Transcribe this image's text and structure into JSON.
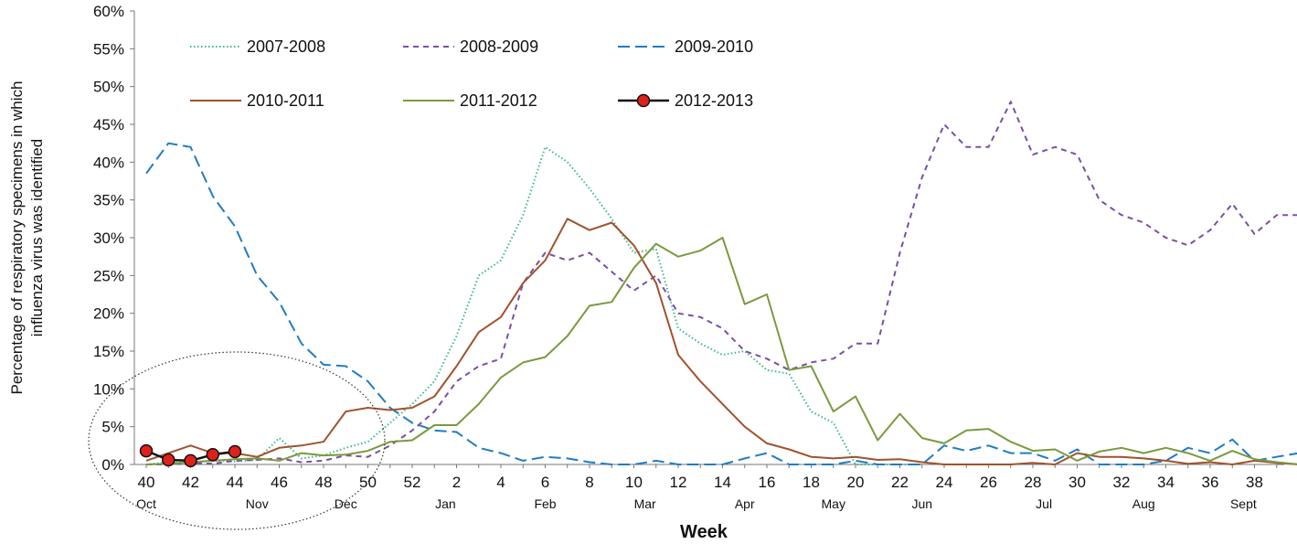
{
  "chart_data": {
    "type": "line",
    "title": "",
    "xlabel": "Week",
    "ylabel_line1": "Percentage of respiratory specimens in which",
    "ylabel_line2": "influenza virus was identified",
    "ylim": [
      0,
      60
    ],
    "y_ticks": [
      "0%",
      "5%",
      "10%",
      "15%",
      "20%",
      "25%",
      "30%",
      "35%",
      "40%",
      "45%",
      "50%",
      "55%",
      "60%"
    ],
    "x_tick_labels": [
      "40",
      "42",
      "44",
      "46",
      "48",
      "50",
      "52",
      "2",
      "4",
      "6",
      "8",
      "10",
      "12",
      "14",
      "16",
      "18",
      "20",
      "22",
      "24",
      "26",
      "28",
      "30",
      "32",
      "34",
      "36",
      "38"
    ],
    "month_labels": [
      {
        "label": "Oct",
        "week_index": 0
      },
      {
        "label": "Nov",
        "week_index": 5
      },
      {
        "label": "Dec",
        "week_index": 9
      },
      {
        "label": "Jan",
        "week_index": 13.5
      },
      {
        "label": "Feb",
        "week_index": 18
      },
      {
        "label": "Mar",
        "week_index": 22.5
      },
      {
        "label": "Apr",
        "week_index": 27
      },
      {
        "label": "May",
        "week_index": 31
      },
      {
        "label": "Jun",
        "week_index": 35
      },
      {
        "label": "Jul",
        "week_index": 40.5
      },
      {
        "label": "Aug",
        "week_index": 45
      },
      {
        "label": "Sept",
        "week_index": 49.5
      }
    ],
    "x_note": "x values are week positions counted from week 40 (index 0) through week 39 (index 52)",
    "grid": false,
    "legend_placement": "top-left",
    "series": [
      {
        "name": "2007-2008",
        "color": "#3cb88a",
        "style": "dotted",
        "x": [
          0,
          1,
          2,
          3,
          4,
          5,
          6,
          7,
          8,
          9,
          10,
          11,
          12,
          13,
          14,
          15,
          16,
          17,
          18,
          19,
          20,
          21,
          22,
          23,
          24,
          25,
          26,
          27,
          28,
          29,
          30,
          31,
          32,
          33,
          34,
          35
        ],
        "values": [
          0,
          0.3,
          0.2,
          0.5,
          0.4,
          0.6,
          3.5,
          0.8,
          1.2,
          2.2,
          3,
          5.5,
          8,
          11,
          17,
          25,
          27,
          33,
          42,
          40,
          36.5,
          32.5,
          28,
          28.5,
          18,
          16,
          14.5,
          15,
          12.5,
          12,
          7,
          5.5,
          0,
          0,
          0,
          0
        ]
      },
      {
        "name": "2008-2009",
        "color": "#7b4fa3",
        "style": "dashed",
        "x": [
          0,
          1,
          2,
          3,
          4,
          5,
          6,
          7,
          8,
          9,
          10,
          11,
          12,
          13,
          14,
          15,
          16,
          17,
          18,
          19,
          20,
          21,
          22,
          23,
          24,
          25,
          26,
          27,
          28,
          29,
          30,
          31,
          32,
          33,
          34,
          35,
          36,
          37,
          38,
          39,
          40,
          41,
          42,
          43,
          44,
          45,
          46,
          47,
          48,
          49,
          50,
          51,
          52
        ],
        "values": [
          0,
          0,
          0.2,
          0.1,
          0.5,
          0.6,
          0.8,
          0.3,
          0.5,
          1.2,
          1,
          2.5,
          4.5,
          7,
          11,
          13,
          14,
          24,
          28,
          27,
          28,
          25.5,
          23,
          25,
          20,
          19.5,
          18,
          15,
          14,
          12.5,
          13.5,
          14,
          16,
          16,
          28,
          38,
          45,
          42,
          42,
          48,
          41,
          42,
          41,
          35,
          33,
          32,
          30,
          29,
          31,
          34.5,
          30.5,
          33,
          33
        ]
      },
      {
        "name": "2009-2010",
        "color": "#1f7dc2",
        "style": "longdash",
        "x": [
          0,
          1,
          2,
          3,
          4,
          5,
          6,
          7,
          8,
          9,
          10,
          11,
          12,
          13,
          14,
          15,
          16,
          17,
          18,
          19,
          20,
          21,
          22,
          23,
          24,
          25,
          26,
          27,
          28,
          29,
          30,
          31,
          32,
          33,
          34,
          35,
          36,
          37,
          38,
          39,
          40,
          41,
          42,
          43,
          44,
          45,
          46,
          47,
          48,
          49,
          50,
          51,
          52
        ],
        "values": [
          38.5,
          42.5,
          42,
          35.5,
          31.5,
          25,
          21.5,
          16,
          13.2,
          13,
          11,
          7.5,
          5.5,
          4.5,
          4.3,
          2.2,
          1.5,
          0.5,
          1,
          0.8,
          0.3,
          0,
          0,
          0.5,
          0,
          0,
          0,
          0.8,
          1.5,
          0,
          0,
          0,
          0.5,
          0,
          0,
          0,
          2.5,
          1.8,
          2.5,
          1.5,
          1.5,
          0.5,
          2,
          0,
          0,
          0,
          0.5,
          2.2,
          1.5,
          3.3,
          0.5,
          1,
          1.5
        ]
      },
      {
        "name": "2010-2011",
        "color": "#a0522d",
        "style": "solid",
        "x": [
          0,
          1,
          2,
          3,
          4,
          5,
          6,
          7,
          8,
          9,
          10,
          11,
          12,
          13,
          14,
          15,
          16,
          17,
          18,
          19,
          20,
          21,
          22,
          23,
          24,
          25,
          26,
          27,
          28,
          29,
          30,
          31,
          32,
          33,
          34,
          35,
          36,
          37,
          38,
          39,
          40,
          41,
          42,
          43,
          44,
          45,
          46,
          47,
          48,
          49,
          50,
          51,
          52
        ],
        "values": [
          0.5,
          1.5,
          2.5,
          1.5,
          1.5,
          1,
          2.2,
          2.5,
          3,
          7,
          7.5,
          7.2,
          7.5,
          9,
          13,
          17.5,
          19.5,
          24,
          27,
          32.5,
          31,
          32,
          29,
          24,
          14.5,
          11,
          8,
          5,
          2.8,
          2,
          1,
          0.8,
          1,
          0.6,
          0.7,
          0.3,
          0,
          0,
          0,
          0,
          0.2,
          0,
          1.5,
          1,
          1,
          0.8,
          0.5,
          0.1,
          0.3,
          0,
          0.5,
          0.2,
          0
        ]
      },
      {
        "name": "2011-2012",
        "color": "#7a9a3e",
        "style": "solid",
        "x": [
          0,
          1,
          2,
          3,
          4,
          5,
          6,
          7,
          8,
          9,
          10,
          11,
          12,
          13,
          14,
          15,
          16,
          17,
          18,
          19,
          20,
          21,
          22,
          23,
          24,
          25,
          26,
          27,
          28,
          29,
          30,
          31,
          32,
          33,
          34,
          35,
          36,
          37,
          38,
          39,
          40,
          41,
          42,
          43,
          44,
          45,
          46,
          47,
          48,
          49,
          50,
          51,
          52
        ],
        "values": [
          0,
          0.1,
          0.3,
          0.5,
          0.7,
          0.8,
          0.5,
          1.5,
          1.2,
          1.3,
          1.8,
          3,
          3.2,
          5.2,
          5.2,
          8,
          11.5,
          13.5,
          14.2,
          17,
          21,
          21.5,
          26,
          29.2,
          27.5,
          28.3,
          30,
          21.2,
          22.5,
          12.5,
          13,
          7,
          9,
          3.2,
          6.7,
          3.5,
          2.8,
          4.5,
          4.7,
          3,
          1.8,
          2,
          0.5,
          1.7,
          2.2,
          1.5,
          2.2,
          1.5,
          0.5,
          1.8,
          0.7,
          0.3,
          0
        ]
      },
      {
        "name": "2012-2013",
        "color": "#e0201b",
        "line_color": "#111111",
        "style": "marker",
        "x": [
          0,
          1,
          2,
          3,
          4
        ],
        "values": [
          1.8,
          0.6,
          0.5,
          1.3,
          1.7
        ]
      }
    ],
    "annotation": "dotted ellipse highlighting weeks 40-50"
  }
}
